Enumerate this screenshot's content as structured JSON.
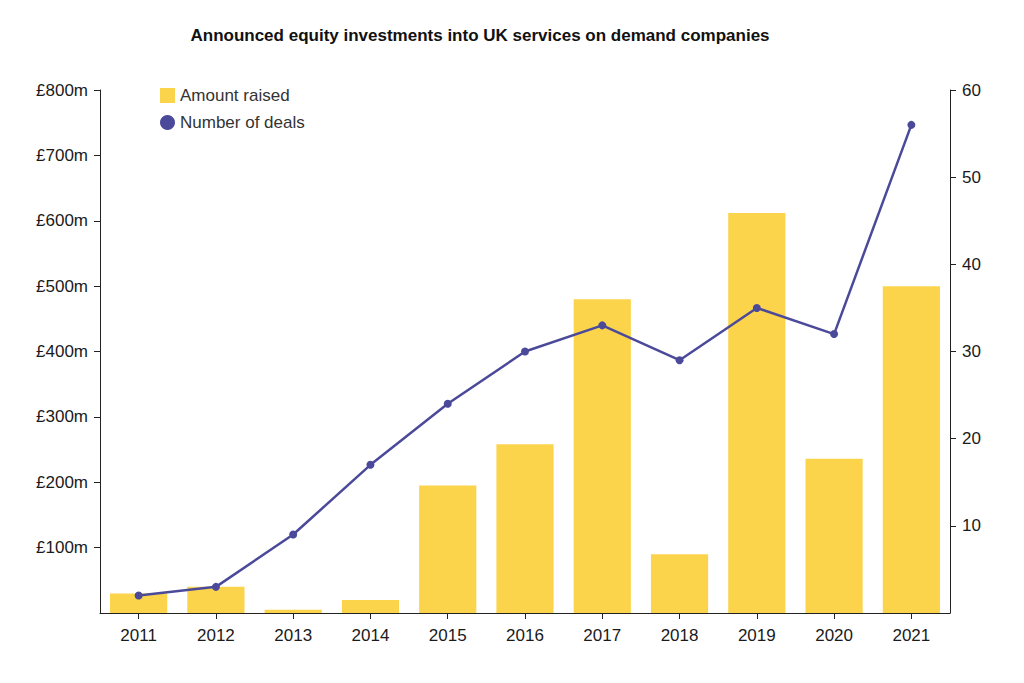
{
  "chart_data": {
    "type": "bar",
    "title": "Announced equity investments into UK services on demand companies",
    "categories": [
      "2011",
      "2012",
      "2013",
      "2014",
      "2015",
      "2016",
      "2017",
      "2018",
      "2019",
      "2020",
      "2021"
    ],
    "series": [
      {
        "name": "Amount raised",
        "type": "bar",
        "color": "#fbd44b",
        "values": [
          30,
          40,
          5,
          20,
          195,
          258,
          480,
          90,
          612,
          236,
          500
        ]
      },
      {
        "name": "Number of deals",
        "type": "line",
        "axis": "y2",
        "color": "#4b4a9a",
        "marker": "circle",
        "values": [
          2,
          3,
          9,
          17,
          24,
          30,
          33,
          29,
          35,
          32,
          56
        ]
      }
    ],
    "ylim": [
      0,
      800
    ],
    "yticks": [
      {
        "value": 100,
        "label": "£100m"
      },
      {
        "value": 200,
        "label": "£200m"
      },
      {
        "value": 300,
        "label": "£300m"
      },
      {
        "value": 400,
        "label": "£400m"
      },
      {
        "value": 500,
        "label": "£500m"
      },
      {
        "value": 600,
        "label": "£600m"
      },
      {
        "value": 700,
        "label": "£700m"
      },
      {
        "value": 800,
        "label": "£800m"
      }
    ],
    "y2lim": [
      0,
      60
    ],
    "y2ticks": [
      10,
      20,
      30,
      40,
      50,
      60
    ],
    "grid": false,
    "legend": "top-left"
  }
}
